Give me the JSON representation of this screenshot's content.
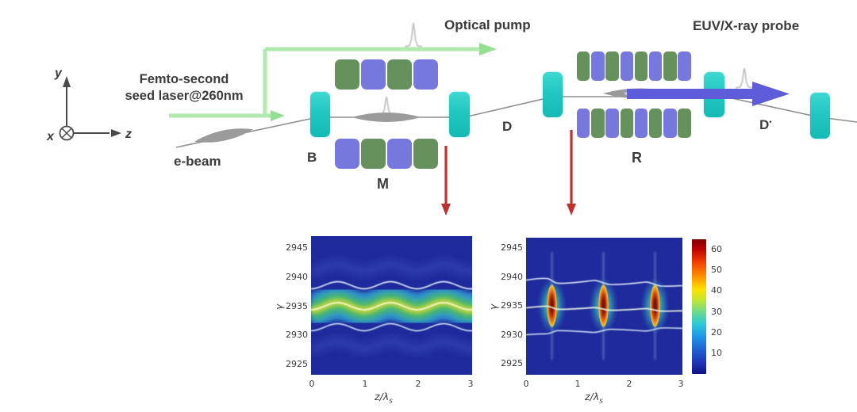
{
  "figure": {
    "coordinate_axes": {
      "y": "y",
      "z": "z",
      "x": "x"
    },
    "labels": {
      "seed_laser_line1": "Femto-second",
      "seed_laser_line2": "seed laser@260nm",
      "optical_pump": "Optical pump",
      "euv_xray_probe": "EUV/X-ray probe",
      "e_beam": "e-beam",
      "bend": "B",
      "modulator": "M",
      "chicane": "D",
      "radiator": "R",
      "chicane2": "D",
      "chicane2_sup": "•"
    },
    "colors": {
      "teal_block": "#29cbc4",
      "green_block": "#66905c",
      "purple_block": "#7678de",
      "seed_laser_green": "#a9e8a6",
      "probe_arrow_blue": "#5f5cd9",
      "red_arrow": "#bb3330",
      "beamline_gray": "#8f8f8f",
      "ebeam_gray": "#9b9b9b",
      "text": "#3b3b3b"
    },
    "modulator_blocks": {
      "top": [
        "green",
        "purple",
        "green",
        "purple"
      ],
      "bottom": [
        "purple",
        "green",
        "purple",
        "green"
      ]
    },
    "radiator_blocks": {
      "top": [
        "green",
        "purple",
        "green",
        "purple",
        "green",
        "purple",
        "green",
        "purple"
      ],
      "bottom": [
        "purple",
        "green",
        "purple",
        "green",
        "purple",
        "green",
        "purple",
        "green"
      ]
    }
  },
  "chart_data": [
    {
      "id": "phase-space-after-modulator",
      "type": "heatmap",
      "title": "",
      "xlabel": "z/λ",
      "xlabel_sub": "s",
      "ylabel": "γ",
      "x_ticks": [
        0,
        1,
        2,
        3
      ],
      "y_ticks": [
        2945,
        2940,
        2935,
        2930,
        2925
      ],
      "xlim": [
        0,
        3
      ],
      "ylim": [
        2923,
        2947
      ],
      "grid": false,
      "description": "Longitudinal phase space after the modulator: electron-beam band centered at γ = 2935 (half-width ≈ 4.5 γ-units) with sinusoidal energy modulation, period 1 in z/λs, wave crests at z/λs = 0.5, 1.5, 2.5; core density ≈ 35–40 (yellow-green on jet colormap)",
      "band": {
        "center_gamma": 2935,
        "half_width_gamma": 4.5,
        "contour_gammas": [
          2938.6,
          2935,
          2931.4
        ],
        "wave_period_z": 1,
        "wave_amplitude_gamma": 0.6,
        "crest_positions_z": [
          0.5,
          1.5,
          2.5
        ],
        "peak_density": 40
      }
    },
    {
      "id": "phase-space-after-chicane",
      "type": "heatmap",
      "title": "",
      "xlabel": "z/λ",
      "xlabel_sub": "s",
      "ylabel": "γ",
      "x_ticks": [
        0,
        1,
        2,
        3
      ],
      "y_ticks": [
        2945,
        2940,
        2935,
        2930,
        2925
      ],
      "xlim": [
        0,
        3
      ],
      "ylim": [
        2923,
        2947
      ],
      "grid": false,
      "description": "Longitudinal phase space after dispersion: three dense microbunches (red/orange hot spots, peak ≈ 60–65) at z/λs = 0.5, 1.5, 2.5 centered at γ = 2935, surrounded by cyan halo and stepped white contour lines",
      "hotspots": [
        {
          "z": 0.5,
          "gamma": 2935,
          "peak": 62
        },
        {
          "z": 1.5,
          "gamma": 2935,
          "peak": 62
        },
        {
          "z": 2.5,
          "gamma": 2935,
          "peak": 62
        }
      ],
      "contour_gammas": [
        2938.6,
        2935,
        2931.4
      ],
      "colorbar": {
        "ticks": [
          10,
          20,
          30,
          40,
          50,
          60
        ],
        "range": [
          0,
          65
        ],
        "colormap": "jet",
        "position": "right"
      }
    }
  ]
}
